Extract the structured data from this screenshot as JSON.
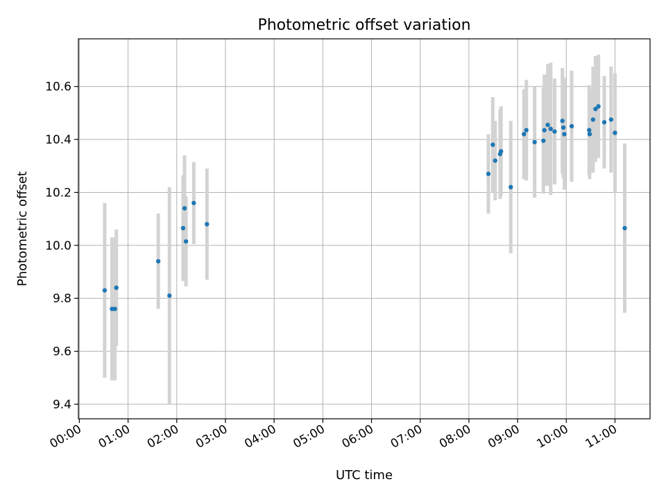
{
  "chart_data": {
    "type": "scatter",
    "title": "Photometric offset variation",
    "xlabel": "UTC time",
    "ylabel": "Photometric offset",
    "x_unit": "hour",
    "xlim": [
      -0.02,
      11.72
    ],
    "ylim": [
      9.345,
      10.78
    ],
    "grid": true,
    "x_ticks": [
      0,
      1,
      2,
      3,
      4,
      5,
      6,
      7,
      8,
      9,
      10,
      11
    ],
    "x_tick_labels": [
      "00:00",
      "01:00",
      "02:00",
      "03:00",
      "04:00",
      "05:00",
      "06:00",
      "07:00",
      "08:00",
      "09:00",
      "10:00",
      "11:00"
    ],
    "y_ticks": [
      9.4,
      9.6,
      9.8,
      10.0,
      10.2,
      10.4,
      10.6
    ],
    "y_tick_labels": [
      "9.4",
      "9.6",
      "9.8",
      "10.0",
      "10.2",
      "10.4",
      "10.6"
    ],
    "point_color": "#1f77b4",
    "errorbar_color": "#d3d3d3",
    "series": [
      {
        "x": [
          0.52,
          0.67,
          0.73,
          0.76,
          1.62,
          1.85,
          2.13,
          2.16,
          2.19,
          2.35,
          2.62,
          8.4,
          8.49,
          8.54,
          8.64,
          8.66,
          8.86,
          9.13,
          9.18,
          9.35,
          9.53,
          9.55,
          9.62,
          9.68,
          9.76,
          9.92,
          9.94,
          9.96,
          10.11,
          10.47,
          10.48,
          10.55,
          10.6,
          10.66,
          10.78,
          10.92,
          11.0,
          11.2
        ],
        "y": [
          9.83,
          9.76,
          9.76,
          9.84,
          9.94,
          9.81,
          10.065,
          10.14,
          10.015,
          10.16,
          10.08,
          10.27,
          10.38,
          10.32,
          10.345,
          10.355,
          10.22,
          10.42,
          10.435,
          10.39,
          10.395,
          10.435,
          10.455,
          10.44,
          10.43,
          10.47,
          10.445,
          10.42,
          10.45,
          10.435,
          10.42,
          10.475,
          10.515,
          10.525,
          10.465,
          10.475,
          10.425,
          10.065
        ],
        "yerr": [
          0.33,
          0.27,
          0.27,
          0.22,
          0.18,
          0.41,
          0.2,
          0.2,
          0.17,
          0.155,
          0.21,
          0.15,
          0.18,
          0.15,
          0.17,
          0.17,
          0.25,
          0.17,
          0.19,
          0.21,
          0.2,
          0.21,
          0.23,
          0.25,
          0.2,
          0.2,
          0.19,
          0.21,
          0.21,
          0.17,
          0.17,
          0.2,
          0.2,
          0.195,
          0.175,
          0.2,
          0.225,
          0.32
        ]
      }
    ]
  }
}
